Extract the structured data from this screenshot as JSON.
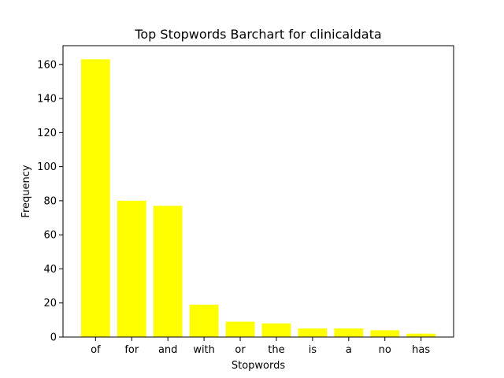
{
  "chart_data": {
    "type": "bar",
    "title": "Top Stopwords Barchart for clinicaldata",
    "xlabel": "Stopwords",
    "ylabel": "Frequency",
    "categories": [
      "of",
      "for",
      "and",
      "with",
      "or",
      "the",
      "is",
      "a",
      "no",
      "has"
    ],
    "values": [
      163,
      80,
      77,
      19,
      9,
      8,
      5,
      5,
      4,
      2
    ],
    "ylim": [
      0,
      171
    ],
    "yticks": [
      0,
      20,
      40,
      60,
      80,
      100,
      120,
      140,
      160
    ],
    "bar_color": "#ffff00",
    "grid": false
  }
}
